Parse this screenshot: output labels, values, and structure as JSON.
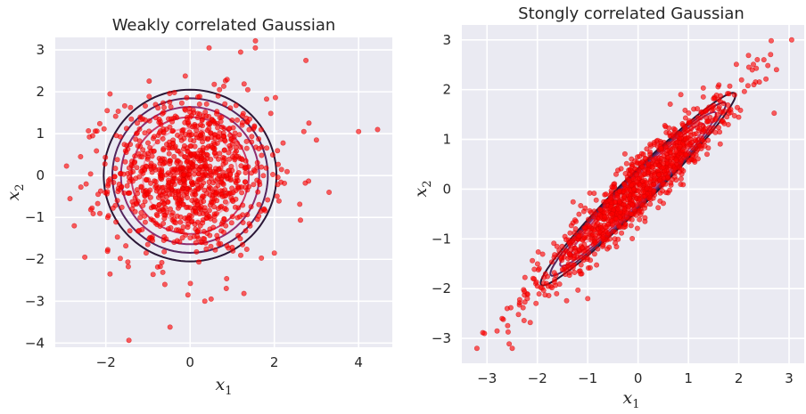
{
  "chart_data": [
    {
      "type": "scatter",
      "title": "Weakly correlated Gaussian",
      "xlabel": "x",
      "xlabel_sub": "1",
      "ylabel": "x",
      "ylabel_sub": "2",
      "xlim": [
        -3.2,
        4.8
      ],
      "ylim": [
        -4.1,
        3.3
      ],
      "xticks": [
        -2,
        0,
        2,
        4
      ],
      "xtick_labels": [
        "−2",
        "0",
        "2",
        "4"
      ],
      "yticks": [
        -4,
        -3,
        -2,
        -1,
        0,
        1,
        2,
        3
      ],
      "ytick_labels": [
        "−4",
        "−3",
        "−2",
        "−1",
        "0",
        "1",
        "2",
        "3"
      ],
      "grid": true,
      "point_color": "#ff0000",
      "distribution": {
        "mean": [
          0,
          0
        ],
        "cov": [
          [
            0.88,
            0.0
          ],
          [
            0.0,
            0.88
          ]
        ],
        "n_points": 1000
      },
      "contours": {
        "center": [
          0,
          0
        ],
        "semi_axes": [
          2.05,
          2.05
        ],
        "angle_deg": 0,
        "scales": [
          0.55,
          0.68,
          0.8,
          0.9,
          1.0
        ],
        "colors": [
          "#f1a0b2",
          "#c83a6a",
          "#8c2e72",
          "#53265f",
          "#2a1636"
        ]
      },
      "points": [
        [
          4.45,
          1.1
        ],
        [
          4.0,
          1.05
        ],
        [
          3.3,
          -0.4
        ],
        [
          2.75,
          2.75
        ],
        [
          3.0,
          0.85
        ],
        [
          2.7,
          1.05
        ],
        [
          -2.75,
          -1.2
        ],
        [
          -2.5,
          -1.95
        ],
        [
          -2.85,
          -0.55
        ],
        [
          -2.6,
          0.45
        ],
        [
          -1.9,
          1.95
        ],
        [
          0.45,
          3.05
        ],
        [
          1.55,
          3.05
        ],
        [
          1.2,
          2.95
        ],
        [
          -0.05,
          -2.85
        ],
        [
          0.5,
          -2.95
        ],
        [
          0.35,
          -3.0
        ],
        [
          -0.6,
          -2.6
        ],
        [
          -1.9,
          -2.35
        ],
        [
          2.0,
          -1.85
        ]
      ]
    },
    {
      "type": "scatter",
      "title": "Stongly correlated Gaussian",
      "xlabel": "x",
      "xlabel_sub": "1",
      "ylabel": "x",
      "ylabel_sub": "2",
      "xlim": [
        -3.5,
        3.3
      ],
      "ylim": [
        -3.5,
        3.3
      ],
      "xticks": [
        -3,
        -2,
        -1,
        0,
        1,
        2,
        3
      ],
      "xtick_labels": [
        "−3",
        "−2",
        "−1",
        "0",
        "1",
        "2",
        "3"
      ],
      "yticks": [
        -3,
        -2,
        -1,
        0,
        1,
        2,
        3
      ],
      "ytick_labels": [
        "−3",
        "−2",
        "−1",
        "0",
        "1",
        "2",
        "3"
      ],
      "grid": true,
      "point_color": "#ff0000",
      "distribution": {
        "mean": [
          0,
          0
        ],
        "cov": [
          [
            1.0,
            0.95
          ],
          [
            0.95,
            1.0
          ]
        ],
        "n_points": 1000
      },
      "contours": {
        "center": [
          0,
          0
        ],
        "semi_axes": [
          2.72,
          0.3
        ],
        "angle_deg": 45,
        "scales": [
          0.55,
          0.68,
          0.8,
          0.9,
          1.0
        ],
        "colors": [
          "#f1a0b2",
          "#c83a6a",
          "#8c2e72",
          "#53265f",
          "#2a1636"
        ]
      },
      "points": [
        [
          3.05,
          3.0
        ],
        [
          2.75,
          2.4
        ],
        [
          2.5,
          2.6
        ],
        [
          2.2,
          2.45
        ],
        [
          -3.2,
          -3.2
        ],
        [
          -3.05,
          -2.9
        ],
        [
          -2.8,
          -2.85
        ],
        [
          -2.7,
          -2.6
        ],
        [
          -2.5,
          -3.2
        ],
        [
          -2.6,
          -2.4
        ],
        [
          -2.2,
          -2.2
        ],
        [
          -2.0,
          -1.95
        ],
        [
          1.6,
          1.8
        ],
        [
          0.85,
          1.9
        ],
        [
          -1.0,
          -2.2
        ],
        [
          2.3,
          2.1
        ]
      ]
    }
  ]
}
